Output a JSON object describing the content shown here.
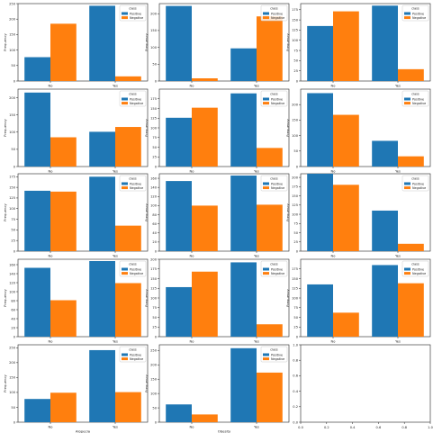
{
  "colors": {
    "positive": "#1f77b4",
    "negative": "#ff7f0e"
  },
  "legend": {
    "title": "class",
    "entries": [
      "Positive",
      "Negative"
    ],
    "placement": "upper-right"
  },
  "ylabel": "Frequency",
  "chart_data": [
    {
      "type": "bar",
      "xlabel": "Polyuria",
      "categories": [
        "No",
        "Yes"
      ],
      "ylim": [
        0,
        250
      ],
      "yticks": [
        0,
        50,
        100,
        150,
        200,
        250
      ],
      "series": [
        {
          "name": "Positive",
          "values": [
            77,
            243
          ]
        },
        {
          "name": "Negative",
          "values": [
            185,
            15
          ]
        }
      ]
    },
    {
      "type": "bar",
      "xlabel": "Polydipsia",
      "categories": [
        "No",
        "Yes"
      ],
      "ylim": [
        0,
        230
      ],
      "yticks": [
        0,
        50,
        100,
        150,
        200
      ],
      "series": [
        {
          "name": "Positive",
          "values": [
            223,
            97
          ]
        },
        {
          "name": "Negative",
          "values": [
            8,
            192
          ]
        }
      ]
    },
    {
      "type": "bar",
      "xlabel": "sudden weight loss",
      "categories": [
        "No",
        "Yes"
      ],
      "ylim": [
        0,
        190
      ],
      "yticks": [
        0,
        25,
        50,
        75,
        100,
        125,
        150,
        175
      ],
      "series": [
        {
          "name": "Positive",
          "values": [
            135,
            185
          ]
        },
        {
          "name": "Negative",
          "values": [
            171,
            29
          ]
        }
      ]
    },
    {
      "type": "bar",
      "xlabel": "weakness",
      "categories": [
        "No",
        "Yes"
      ],
      "ylim": [
        0,
        225
      ],
      "yticks": [
        0,
        50,
        100,
        150,
        200
      ],
      "series": [
        {
          "name": "Positive",
          "values": [
            215,
            101
          ]
        },
        {
          "name": "Negative",
          "values": [
            85,
            115
          ]
        }
      ]
    },
    {
      "type": "bar",
      "xlabel": "Polyphagia",
      "categories": [
        "No",
        "Yes"
      ],
      "ylim": [
        0,
        200
      ],
      "yticks": [
        0,
        25,
        50,
        75,
        100,
        125,
        150,
        175
      ],
      "series": [
        {
          "name": "Positive",
          "values": [
            126,
            189
          ]
        },
        {
          "name": "Negative",
          "values": [
            152,
            48
          ]
        }
      ]
    },
    {
      "type": "bar",
      "xlabel": "Genital thrush",
      "categories": [
        "No",
        "Yes"
      ],
      "ylim": [
        0,
        250
      ],
      "yticks": [
        0,
        50,
        100,
        150,
        200
      ],
      "series": [
        {
          "name": "Positive",
          "values": [
            237,
            83
          ]
        },
        {
          "name": "Negative",
          "values": [
            167,
            33
          ]
        }
      ]
    },
    {
      "type": "bar",
      "xlabel": "visual blurring",
      "categories": [
        "No",
        "Yes"
      ],
      "ylim": [
        0,
        182
      ],
      "yticks": [
        0,
        25,
        50,
        75,
        100,
        125,
        150,
        175
      ],
      "series": [
        {
          "name": "Positive",
          "values": [
            142,
            175
          ]
        },
        {
          "name": "Negative",
          "values": [
            140,
            60
          ]
        }
      ]
    },
    {
      "type": "bar",
      "xlabel": "Itching",
      "categories": [
        "No",
        "Yes"
      ],
      "ylim": [
        0,
        170
      ],
      "yticks": [
        0,
        20,
        40,
        60,
        80,
        100,
        120,
        140,
        160
      ],
      "series": [
        {
          "name": "Positive",
          "values": [
            154,
            166
          ]
        },
        {
          "name": "Negative",
          "values": [
            100,
            102
          ]
        }
      ]
    },
    {
      "type": "bar",
      "xlabel": "Irritability",
      "categories": [
        "No",
        "Yes"
      ],
      "ylim": [
        0,
        210
      ],
      "yticks": [
        0,
        25,
        50,
        75,
        100,
        125,
        150,
        175,
        200
      ],
      "series": [
        {
          "name": "Positive",
          "values": [
            210,
            110
          ]
        },
        {
          "name": "Negative",
          "values": [
            180,
            20
          ]
        }
      ]
    },
    {
      "type": "bar",
      "xlabel": "delayed healing",
      "categories": [
        "No",
        "Yes"
      ],
      "ylim": [
        0,
        172
      ],
      "yticks": [
        0,
        20,
        40,
        60,
        80,
        100,
        120,
        140,
        160
      ],
      "series": [
        {
          "name": "Positive",
          "values": [
            153,
            168
          ]
        },
        {
          "name": "Negative",
          "values": [
            81,
            119
          ]
        }
      ]
    },
    {
      "type": "bar",
      "xlabel": "partial paresis",
      "categories": [
        "No",
        "Yes"
      ],
      "ylim": [
        0,
        200
      ],
      "yticks": [
        0,
        25,
        50,
        75,
        100,
        125,
        150,
        175,
        200
      ],
      "series": [
        {
          "name": "Positive",
          "values": [
            128,
            192
          ]
        },
        {
          "name": "Negative",
          "values": [
            168,
            32
          ]
        }
      ]
    },
    {
      "type": "bar",
      "xlabel": "muscle stiffness",
      "categories": [
        "No",
        "Yes"
      ],
      "ylim": [
        0,
        200
      ],
      "yticks": [
        0,
        25,
        50,
        75,
        100,
        125,
        150,
        175
      ],
      "series": [
        {
          "name": "Positive",
          "values": [
            135,
            185
          ]
        },
        {
          "name": "Negative",
          "values": [
            62,
            138
          ]
        }
      ]
    },
    {
      "type": "bar",
      "xlabel": "Alopecia",
      "categories": [
        "No",
        "Yes"
      ],
      "ylim": [
        0,
        260
      ],
      "yticks": [
        0,
        50,
        100,
        150,
        200,
        250
      ],
      "series": [
        {
          "name": "Positive",
          "values": [
            78,
            242
          ]
        },
        {
          "name": "Negative",
          "values": [
            99,
            101
          ]
        }
      ]
    },
    {
      "type": "bar",
      "xlabel": "Obesity",
      "categories": [
        "No",
        "Yes"
      ],
      "ylim": [
        0,
        270
      ],
      "yticks": [
        0,
        50,
        100,
        150,
        200,
        250
      ],
      "series": [
        {
          "name": "Positive",
          "values": [
            62,
            258
          ]
        },
        {
          "name": "Negative",
          "values": [
            27,
            173
          ]
        }
      ]
    },
    {
      "type": "empty",
      "xlim": [
        0,
        1
      ],
      "ylim": [
        0,
        1
      ],
      "xticks": [
        "0.0",
        "0.2",
        "0.4",
        "0.6",
        "0.8",
        "1.0"
      ],
      "yticks": [
        "0.0",
        "0.2",
        "0.4",
        "0.6",
        "0.8",
        "1.0"
      ]
    }
  ]
}
